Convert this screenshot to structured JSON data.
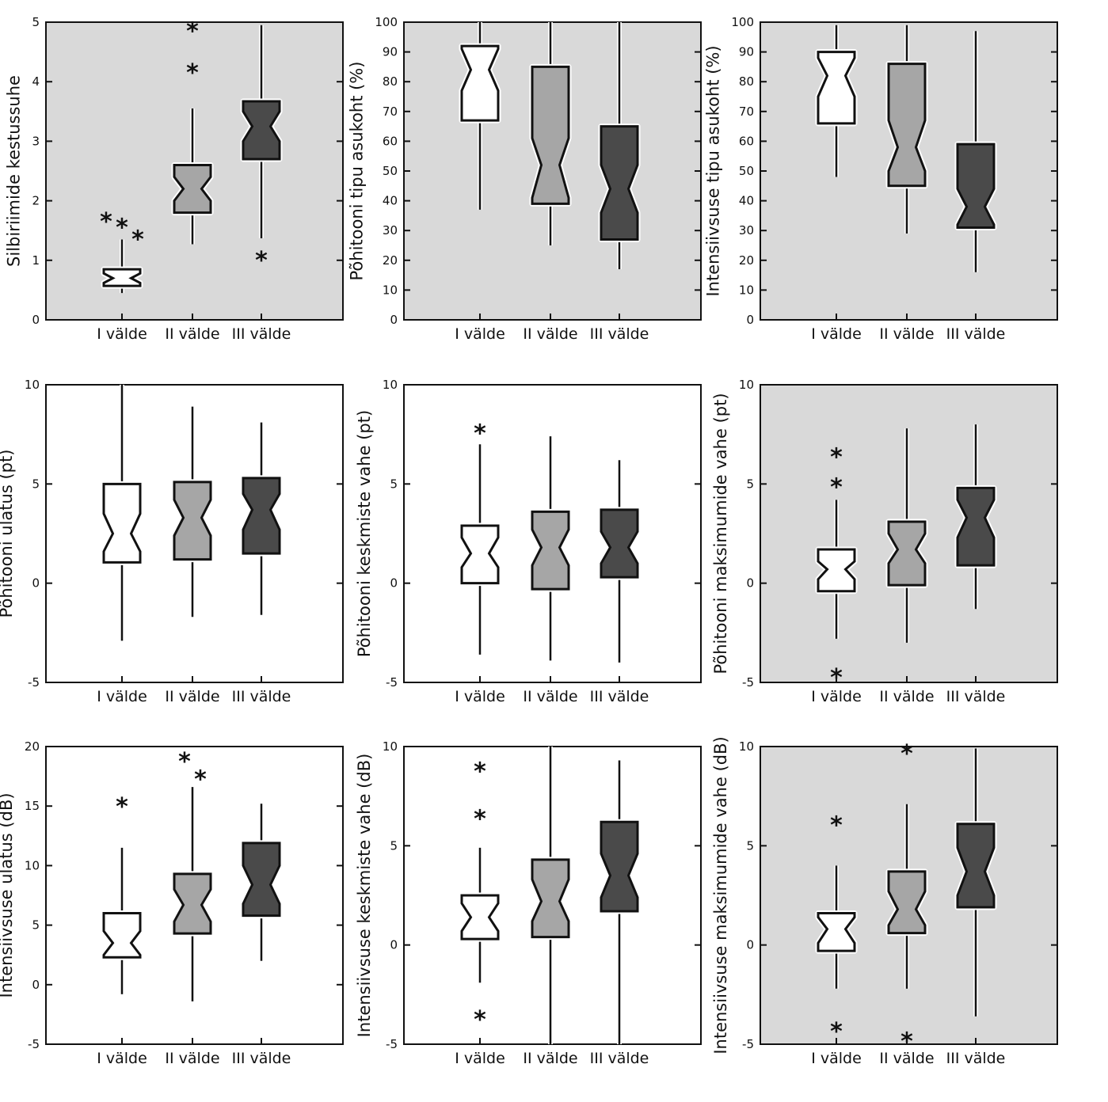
{
  "chart_data": [
    {
      "type": "boxplot",
      "ylabel": "Silbiriimide kestussuhe",
      "ylim": [
        0,
        5
      ],
      "yticks": [
        0,
        1,
        2,
        3,
        4,
        5
      ],
      "background": "#d9d9d9",
      "categories": [
        "I välde",
        "II välde",
        "III välde"
      ],
      "boxes": [
        {
          "q1": 0.57,
          "median": 0.7,
          "q3": 0.85,
          "notch": [
            0.62,
            0.78
          ],
          "whisker": [
            0.45,
            1.35
          ],
          "outliers": [
            1.4,
            1.6,
            1.7
          ]
        },
        {
          "q1": 1.8,
          "median": 2.2,
          "q3": 2.6,
          "notch": [
            2.0,
            2.4
          ],
          "whisker": [
            1.27,
            3.55
          ],
          "outliers": [
            4.2,
            4.9
          ]
        },
        {
          "q1": 2.7,
          "median": 3.25,
          "q3": 3.67,
          "notch": [
            3.0,
            3.5
          ],
          "whisker": [
            1.37,
            4.95
          ],
          "outliers": [
            1.05
          ]
        }
      ]
    },
    {
      "type": "boxplot",
      "ylabel": "Põhitooni tipu asukoht (%)",
      "ylim": [
        0,
        100
      ],
      "yticks": [
        0,
        10,
        20,
        30,
        40,
        50,
        60,
        70,
        80,
        90,
        100
      ],
      "background": "#d9d9d9",
      "categories": [
        "I välde",
        "II välde",
        "III välde"
      ],
      "boxes": [
        {
          "q1": 67,
          "median": 84,
          "q3": 92,
          "notch": [
            77,
            91
          ],
          "whisker": [
            37,
            100
          ],
          "outliers": []
        },
        {
          "q1": 39,
          "median": 52,
          "q3": 85,
          "notch": [
            41,
            61
          ],
          "whisker": [
            25,
            100
          ],
          "outliers": []
        },
        {
          "q1": 27,
          "median": 44,
          "q3": 65,
          "notch": [
            36,
            52
          ],
          "whisker": [
            17,
            100
          ],
          "outliers": []
        }
      ]
    },
    {
      "type": "boxplot",
      "ylabel": "Intensiivsuse tipu asukoht (%)",
      "ylim": [
        0,
        100
      ],
      "yticks": [
        0,
        10,
        20,
        30,
        40,
        50,
        60,
        70,
        80,
        90,
        100
      ],
      "background": "#d9d9d9",
      "categories": [
        "I välde",
        "II välde",
        "III välde"
      ],
      "boxes": [
        {
          "q1": 66,
          "median": 82,
          "q3": 90,
          "notch": [
            75,
            88
          ],
          "whisker": [
            48,
            99
          ],
          "outliers": []
        },
        {
          "q1": 45,
          "median": 58,
          "q3": 86,
          "notch": [
            50,
            67
          ],
          "whisker": [
            29,
            99
          ],
          "outliers": []
        },
        {
          "q1": 31,
          "median": 38,
          "q3": 59,
          "notch": [
            32,
            44
          ],
          "whisker": [
            16,
            97
          ],
          "outliers": []
        }
      ]
    },
    {
      "type": "boxplot",
      "ylabel": "Põhitooni ulatus (pt)",
      "ylim": [
        -5,
        10
      ],
      "yticks": [
        -5,
        0,
        5,
        10
      ],
      "background": "#ffffff",
      "categories": [
        "I välde",
        "II välde",
        "III välde"
      ],
      "boxes": [
        {
          "q1": 1.05,
          "median": 2.5,
          "q3": 5.0,
          "notch": [
            1.6,
            3.5
          ],
          "whisker": [
            -2.9,
            10
          ],
          "outliers": []
        },
        {
          "q1": 1.2,
          "median": 3.3,
          "q3": 5.1,
          "notch": [
            2.4,
            4.2
          ],
          "whisker": [
            -1.7,
            8.9
          ],
          "outliers": []
        },
        {
          "q1": 1.5,
          "median": 3.7,
          "q3": 5.3,
          "notch": [
            2.7,
            4.5
          ],
          "whisker": [
            -1.6,
            8.1
          ],
          "outliers": []
        }
      ]
    },
    {
      "type": "boxplot",
      "ylabel": "Põhitooni keskmiste vahe (pt)",
      "ylim": [
        -5,
        10
      ],
      "yticks": [
        -5,
        0,
        5,
        10
      ],
      "background": "#ffffff",
      "categories": [
        "I välde",
        "II välde",
        "III välde"
      ],
      "boxes": [
        {
          "q1": 0,
          "median": 1.5,
          "q3": 2.9,
          "notch": [
            0.8,
            2.3
          ],
          "whisker": [
            -3.6,
            7.0
          ],
          "outliers": [
            7.7
          ]
        },
        {
          "q1": -0.3,
          "median": 1.8,
          "q3": 3.6,
          "notch": [
            0.9,
            2.7
          ],
          "whisker": [
            -3.9,
            7.4
          ],
          "outliers": []
        },
        {
          "q1": 0.3,
          "median": 1.8,
          "q3": 3.7,
          "notch": [
            1.0,
            2.6
          ],
          "whisker": [
            -4.0,
            6.2
          ],
          "outliers": []
        }
      ]
    },
    {
      "type": "boxplot",
      "ylabel": "Põhitooni maksimumide vahe (pt)",
      "ylim": [
        -5,
        10
      ],
      "yticks": [
        -5,
        0,
        5,
        10
      ],
      "background": "#d9d9d9",
      "categories": [
        "I välde",
        "II välde",
        "III välde"
      ],
      "boxes": [
        {
          "q1": -0.4,
          "median": 0.7,
          "q3": 1.7,
          "notch": [
            0.2,
            1.1
          ],
          "whisker": [
            -2.8,
            4.2
          ],
          "outliers": [
            5.0,
            6.5,
            -4.6
          ]
        },
        {
          "q1": -0.1,
          "median": 1.7,
          "q3": 3.1,
          "notch": [
            1.0,
            2.5
          ],
          "whisker": [
            -3.0,
            7.8
          ],
          "outliers": []
        },
        {
          "q1": 0.9,
          "median": 3.3,
          "q3": 4.8,
          "notch": [
            2.3,
            4.2
          ],
          "whisker": [
            -1.3,
            8.0
          ],
          "outliers": []
        }
      ]
    },
    {
      "type": "boxplot",
      "ylabel": "Intensiivsuse ulatus (dB)",
      "ylim": [
        -5,
        20
      ],
      "yticks": [
        -5,
        0,
        5,
        10,
        15,
        20
      ],
      "background": "#ffffff",
      "categories": [
        "I välde",
        "II välde",
        "III välde"
      ],
      "boxes": [
        {
          "q1": 2.3,
          "median": 3.5,
          "q3": 6.0,
          "notch": [
            2.5,
            4.5
          ],
          "whisker": [
            -0.8,
            11.5
          ],
          "outliers": [
            15.2
          ]
        },
        {
          "q1": 4.3,
          "median": 6.7,
          "q3": 9.3,
          "notch": [
            5.3,
            8.0
          ],
          "whisker": [
            -1.4,
            16.6
          ],
          "outliers": [
            17.5,
            19.0
          ]
        },
        {
          "q1": 5.8,
          "median": 8.4,
          "q3": 11.9,
          "notch": [
            6.8,
            10.0
          ],
          "whisker": [
            2.0,
            15.2
          ],
          "outliers": []
        }
      ]
    },
    {
      "type": "boxplot",
      "ylabel": "Intensiivsuse keskmiste vahe (dB)",
      "ylim": [
        -5,
        10
      ],
      "yticks": [
        -5,
        0,
        5,
        10
      ],
      "background": "#ffffff",
      "categories": [
        "I välde",
        "II välde",
        "III välde"
      ],
      "boxes": [
        {
          "q1": 0.3,
          "median": 1.4,
          "q3": 2.5,
          "notch": [
            0.7,
            2.1
          ],
          "whisker": [
            -1.9,
            4.9
          ],
          "outliers": [
            6.5,
            8.9,
            -3.6
          ]
        },
        {
          "q1": 0.4,
          "median": 2.2,
          "q3": 4.3,
          "notch": [
            1.2,
            3.3
          ],
          "whisker": [
            -5,
            10
          ],
          "outliers": []
        },
        {
          "q1": 1.7,
          "median": 3.5,
          "q3": 6.2,
          "notch": [
            2.4,
            4.6
          ],
          "whisker": [
            -5,
            9.3
          ],
          "outliers": []
        }
      ]
    },
    {
      "type": "boxplot",
      "ylabel": "Intensiivsuse maksimumide vahe (dB)",
      "ylim": [
        -5,
        10
      ],
      "yticks": [
        -5,
        0,
        5,
        10
      ],
      "background": "#d9d9d9",
      "categories": [
        "I välde",
        "II välde",
        "III välde"
      ],
      "boxes": [
        {
          "q1": -0.3,
          "median": 0.8,
          "q3": 1.6,
          "notch": [
            0.1,
            1.4
          ],
          "whisker": [
            -2.2,
            4.0
          ],
          "outliers": [
            6.2,
            -4.2
          ]
        },
        {
          "q1": 0.6,
          "median": 1.8,
          "q3": 3.7,
          "notch": [
            1.0,
            2.7
          ],
          "whisker": [
            -2.2,
            7.1
          ],
          "outliers": [
            9.8,
            -4.7
          ]
        },
        {
          "q1": 1.9,
          "median": 3.7,
          "q3": 6.1,
          "notch": [
            2.5,
            4.9
          ],
          "whisker": [
            -3.6,
            9.9
          ],
          "outliers": []
        }
      ]
    }
  ],
  "box_colors": [
    "#ffffff",
    "#a6a6a6",
    "#4a4a4a"
  ]
}
